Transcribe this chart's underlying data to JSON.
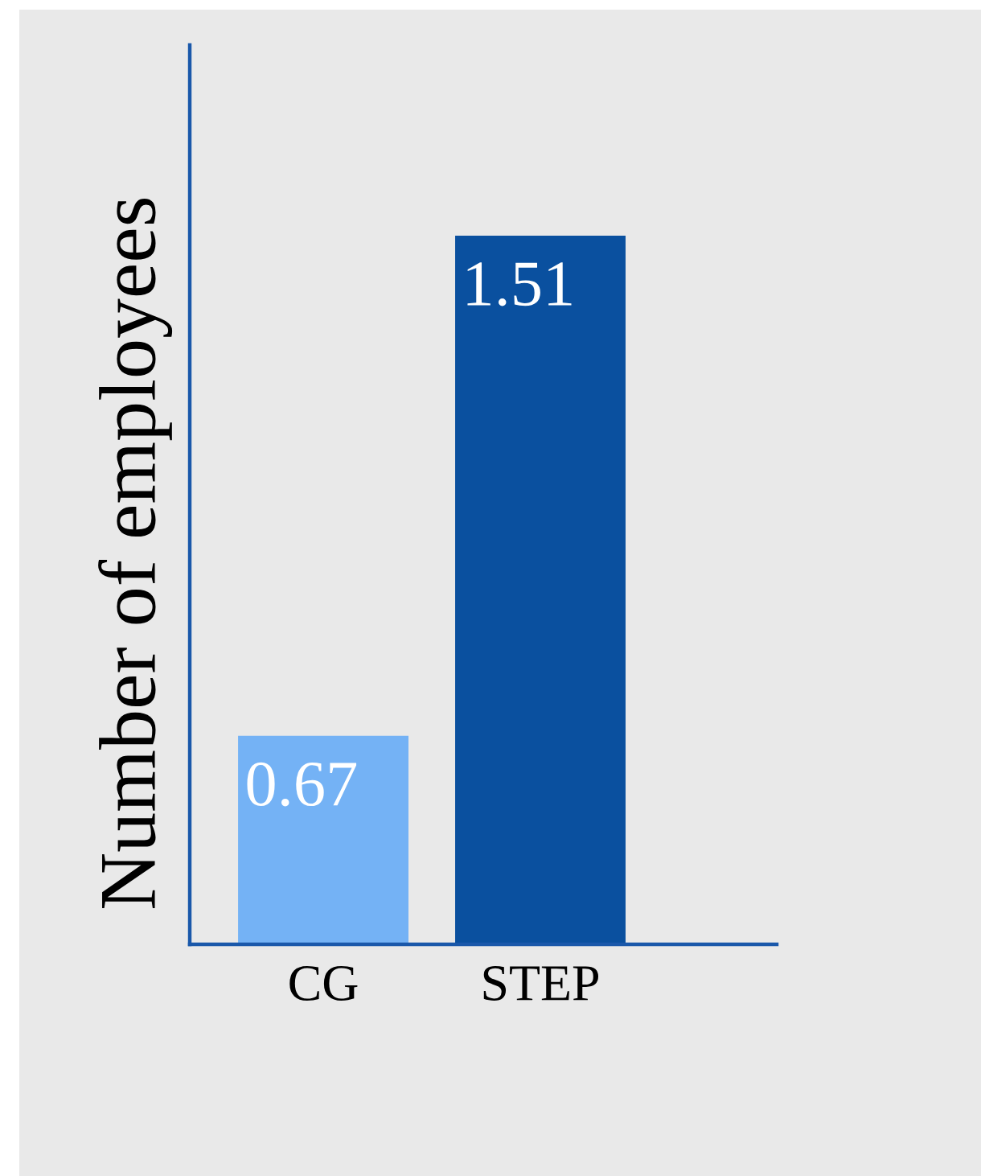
{
  "chart_data": {
    "type": "bar",
    "ylabel": "Number of employees",
    "categories": [
      "CG",
      "STEP"
    ],
    "values": [
      0.67,
      1.51
    ],
    "colors": [
      "#74b2f5",
      "#0a509f"
    ],
    "data_labels": true,
    "ylim": [
      0.32,
      1.83
    ],
    "tick_labels": "x"
  }
}
